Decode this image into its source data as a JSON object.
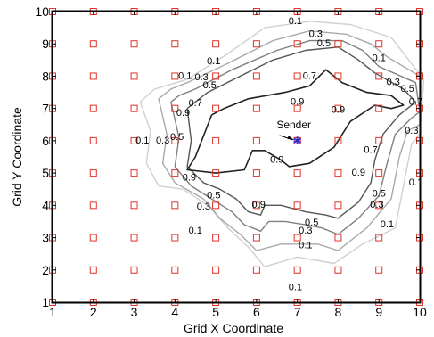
{
  "chart_data": {
    "type": "contour",
    "xlabel": "Grid X Coordinate",
    "ylabel": "Grid Y Coordinate",
    "xlim": [
      1,
      10
    ],
    "ylim": [
      1,
      10
    ],
    "x_ticks": [
      1,
      2,
      3,
      4,
      5,
      6,
      7,
      8,
      9,
      10
    ],
    "y_ticks": [
      1,
      2,
      3,
      4,
      5,
      6,
      7,
      8,
      9,
      10
    ],
    "grid_points": {
      "x": [
        1,
        2,
        3,
        4,
        5,
        6,
        7,
        8,
        9,
        10
      ],
      "y": [
        1,
        2,
        3,
        4,
        5,
        6,
        7,
        8,
        9,
        10
      ],
      "marker": "square",
      "color": "#e0342a"
    },
    "sender": {
      "x": 7,
      "y": 6,
      "label": "Sender",
      "color": "#2a2ad6"
    },
    "contours": [
      {
        "level": 0.1,
        "color": "#d0d0d0",
        "points": [
          [
            3.15,
            7.2
          ],
          [
            3.4,
            6.3
          ],
          [
            3.3,
            5.3
          ],
          [
            3.6,
            4.6
          ],
          [
            4.2,
            4.5
          ],
          [
            4.8,
            4.0
          ],
          [
            5.3,
            3.3
          ],
          [
            5.8,
            2.7
          ],
          [
            6.2,
            2.1
          ],
          [
            7.0,
            2.4
          ],
          [
            7.9,
            2.2
          ],
          [
            8.6,
            2.8
          ],
          [
            9.4,
            3.3
          ],
          [
            9.6,
            4.6
          ],
          [
            9.8,
            5.9
          ],
          [
            10.0,
            6.2
          ],
          [
            10.1,
            7.9
          ],
          [
            9.3,
            9.2
          ],
          [
            8.3,
            9.6
          ],
          [
            7.3,
            9.7
          ],
          [
            6.2,
            9.5
          ],
          [
            5.3,
            8.7
          ],
          [
            4.3,
            7.9
          ],
          [
            3.5,
            7.6
          ],
          [
            3.15,
            7.2
          ]
        ]
      },
      {
        "level": 0.3,
        "color": "#a9a9a9",
        "points": [
          [
            3.6,
            7.3
          ],
          [
            3.8,
            6.2
          ],
          [
            3.7,
            5.3
          ],
          [
            4.0,
            4.7
          ],
          [
            4.7,
            4.2
          ],
          [
            5.1,
            3.6
          ],
          [
            5.6,
            3.1
          ],
          [
            6.0,
            2.6
          ],
          [
            6.6,
            2.8
          ],
          [
            7.5,
            2.8
          ],
          [
            8.0,
            2.6
          ],
          [
            8.7,
            3.3
          ],
          [
            9.3,
            4.2
          ],
          [
            9.5,
            5.5
          ],
          [
            9.7,
            6.3
          ],
          [
            10.0,
            6.5
          ],
          [
            10.0,
            8.0
          ],
          [
            9.2,
            8.6
          ],
          [
            8.8,
            9.0
          ],
          [
            8.2,
            9.3
          ],
          [
            7.3,
            9.4
          ],
          [
            6.4,
            9.1
          ],
          [
            5.3,
            8.4
          ],
          [
            4.3,
            7.8
          ],
          [
            3.9,
            7.6
          ],
          [
            3.6,
            7.3
          ]
        ]
      },
      {
        "level": 0.5,
        "color": "#808080",
        "points": [
          [
            3.9,
            7.2
          ],
          [
            4.1,
            6.1
          ],
          [
            4.0,
            5.2
          ],
          [
            4.4,
            4.6
          ],
          [
            4.9,
            4.2
          ],
          [
            5.4,
            3.8
          ],
          [
            5.7,
            3.4
          ],
          [
            6.1,
            3.2
          ],
          [
            6.3,
            3.5
          ],
          [
            6.7,
            3.5
          ],
          [
            7.2,
            3.4
          ],
          [
            7.6,
            3.3
          ],
          [
            8.0,
            3.1
          ],
          [
            8.5,
            3.6
          ],
          [
            9.0,
            4.3
          ],
          [
            9.2,
            5.3
          ],
          [
            9.4,
            6.2
          ],
          [
            9.8,
            6.7
          ],
          [
            10.0,
            6.9
          ],
          [
            9.9,
            7.8
          ],
          [
            9.0,
            8.3
          ],
          [
            8.6,
            8.8
          ],
          [
            8.1,
            9.1
          ],
          [
            7.3,
            9.1
          ],
          [
            6.5,
            8.8
          ],
          [
            5.4,
            8.2
          ],
          [
            4.5,
            7.6
          ],
          [
            4.1,
            7.4
          ],
          [
            3.9,
            7.2
          ]
        ]
      },
      {
        "level": 0.7,
        "color": "#555555",
        "points": [
          [
            4.3,
            7.0
          ],
          [
            4.4,
            6.0
          ],
          [
            4.3,
            5.2
          ],
          [
            4.7,
            4.7
          ],
          [
            5.1,
            4.5
          ],
          [
            5.5,
            4.2
          ],
          [
            5.8,
            3.8
          ],
          [
            6.1,
            3.7
          ],
          [
            6.2,
            4.0
          ],
          [
            6.6,
            4.0
          ],
          [
            7.2,
            3.8
          ],
          [
            7.7,
            3.7
          ],
          [
            8.0,
            3.6
          ],
          [
            8.5,
            4.1
          ],
          [
            8.8,
            4.7
          ],
          [
            8.9,
            5.4
          ],
          [
            9.1,
            6.2
          ],
          [
            9.5,
            6.8
          ],
          [
            9.9,
            7.2
          ],
          [
            9.6,
            7.6
          ],
          [
            8.9,
            8.1
          ],
          [
            8.5,
            8.5
          ],
          [
            8.0,
            8.9
          ],
          [
            7.2,
            8.8
          ],
          [
            6.4,
            8.5
          ],
          [
            5.6,
            8.0
          ],
          [
            4.8,
            7.5
          ],
          [
            4.5,
            7.2
          ],
          [
            4.3,
            7.0
          ]
        ]
      },
      {
        "level": 0.9,
        "color": "#222222",
        "points": [
          [
            4.9,
            6.8
          ],
          [
            4.5,
            5.5
          ],
          [
            4.3,
            5.1
          ],
          [
            5.0,
            5.0
          ],
          [
            5.7,
            5.1
          ],
          [
            5.9,
            5.7
          ],
          [
            6.2,
            5.7
          ],
          [
            6.6,
            5.4
          ],
          [
            6.8,
            5.2
          ],
          [
            7.3,
            5.3
          ],
          [
            7.9,
            5.8
          ],
          [
            8.0,
            6.0
          ],
          [
            8.3,
            6.6
          ],
          [
            8.9,
            7.1
          ],
          [
            9.3,
            7.0
          ],
          [
            9.6,
            7.1
          ],
          [
            9.3,
            7.4
          ],
          [
            8.7,
            7.5
          ],
          [
            8.1,
            7.8
          ],
          [
            7.7,
            8.2
          ],
          [
            7.3,
            7.7
          ],
          [
            6.7,
            7.5
          ],
          [
            5.8,
            7.3
          ],
          [
            5.2,
            7.0
          ],
          [
            4.9,
            6.8
          ]
        ]
      }
    ],
    "contour_labels": [
      {
        "text": "0.1",
        "x": 6.95,
        "y": 9.7
      },
      {
        "text": "0.3",
        "x": 7.45,
        "y": 9.3
      },
      {
        "text": "0.5",
        "x": 7.65,
        "y": 9.0
      },
      {
        "text": "0.1",
        "x": 4.95,
        "y": 8.45
      },
      {
        "text": "0.1",
        "x": 4.25,
        "y": 8.0
      },
      {
        "text": "0.3",
        "x": 4.65,
        "y": 7.95
      },
      {
        "text": "0.5",
        "x": 4.85,
        "y": 7.7
      },
      {
        "text": "0.7",
        "x": 7.3,
        "y": 8.0
      },
      {
        "text": "0.9",
        "x": 7.0,
        "y": 7.2
      },
      {
        "text": "0.7",
        "x": 4.5,
        "y": 7.15
      },
      {
        "text": "0.9",
        "x": 4.2,
        "y": 6.85
      },
      {
        "text": "0.1",
        "x": 9.0,
        "y": 8.55
      },
      {
        "text": "0.3",
        "x": 9.35,
        "y": 7.8
      },
      {
        "text": "0.5",
        "x": 9.7,
        "y": 7.6
      },
      {
        "text": "0.7",
        "x": 9.9,
        "y": 7.2
      },
      {
        "text": "0.9",
        "x": 8.0,
        "y": 6.95
      },
      {
        "text": "0.3",
        "x": 9.8,
        "y": 6.3
      },
      {
        "text": "0.1",
        "x": 3.2,
        "y": 6.0
      },
      {
        "text": "0.3",
        "x": 3.7,
        "y": 6.0
      },
      {
        "text": "0.5",
        "x": 4.05,
        "y": 6.1
      },
      {
        "text": "0.7",
        "x": 8.8,
        "y": 5.7
      },
      {
        "text": "0.9",
        "x": 6.5,
        "y": 5.4
      },
      {
        "text": "0.9",
        "x": 4.35,
        "y": 4.85
      },
      {
        "text": "0.9",
        "x": 8.5,
        "y": 5.0
      },
      {
        "text": "0.1",
        "x": 9.9,
        "y": 4.7
      },
      {
        "text": "0.5",
        "x": 4.95,
        "y": 4.3
      },
      {
        "text": "0.3",
        "x": 4.7,
        "y": 3.95
      },
      {
        "text": "0.5",
        "x": 9.0,
        "y": 4.35
      },
      {
        "text": "0.3",
        "x": 8.95,
        "y": 4.0
      },
      {
        "text": "0.1",
        "x": 9.2,
        "y": 3.4
      },
      {
        "text": "0.1",
        "x": 4.5,
        "y": 3.2
      },
      {
        "text": "0.5",
        "x": 7.35,
        "y": 3.45
      },
      {
        "text": "0.3",
        "x": 7.2,
        "y": 3.2
      },
      {
        "text": "0.1",
        "x": 7.2,
        "y": 2.75
      },
      {
        "text": "0.1",
        "x": 6.95,
        "y": 1.45
      },
      {
        "text": "0.9",
        "x": 6.05,
        "y": 4.0
      }
    ]
  }
}
